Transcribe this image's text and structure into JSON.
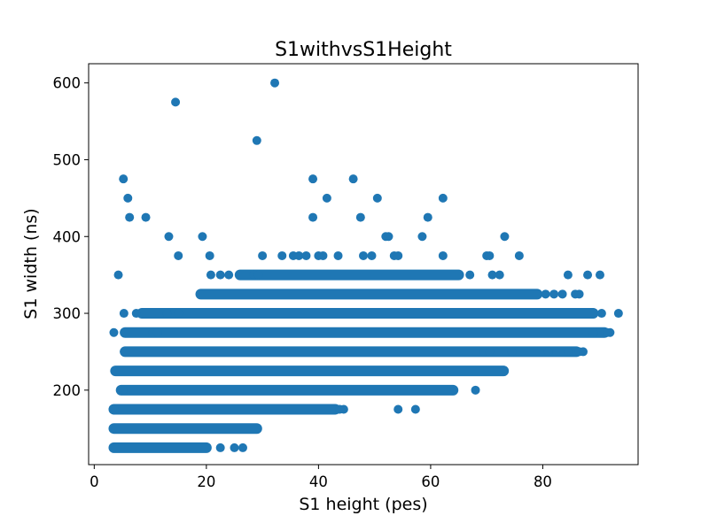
{
  "chart_data": {
    "type": "scatter",
    "title": "S1withvsS1Height",
    "xlabel": "S1 height (pes)",
    "ylabel": "S1 width (ns)",
    "xlim": [
      -1,
      97
    ],
    "ylim": [
      103,
      625
    ],
    "xticks": [
      0,
      20,
      40,
      60,
      80
    ],
    "yticks": [
      200,
      300,
      400,
      500,
      600
    ],
    "grid": false,
    "marker_color": "#1f77b4",
    "dense_bands": [
      {
        "y": 125,
        "x_start": 3.5,
        "x_end": 20
      },
      {
        "y": 150,
        "x_start": 3.5,
        "x_end": 29
      },
      {
        "y": 175,
        "x_start": 3.5,
        "x_end": 43
      },
      {
        "y": 200,
        "x_start": 4.8,
        "x_end": 64
      },
      {
        "y": 225,
        "x_start": 3.8,
        "x_end": 73
      },
      {
        "y": 250,
        "x_start": 5.5,
        "x_end": 86
      },
      {
        "y": 275,
        "x_start": 5.5,
        "x_end": 91
      },
      {
        "y": 300,
        "x_start": 8.5,
        "x_end": 89
      },
      {
        "y": 325,
        "x_start": 19,
        "x_end": 79
      },
      {
        "y": 350,
        "x_start": 26,
        "x_end": 65
      }
    ],
    "points": [
      {
        "x": 3.5,
        "y": 275
      },
      {
        "x": 4.3,
        "y": 350
      },
      {
        "x": 3.6,
        "y": 175
      },
      {
        "x": 5.3,
        "y": 300
      },
      {
        "x": 7.5,
        "y": 300
      },
      {
        "x": 5.1,
        "y": 200
      },
      {
        "x": 5.2,
        "y": 475
      },
      {
        "x": 6.0,
        "y": 450
      },
      {
        "x": 6.3,
        "y": 425
      },
      {
        "x": 9.2,
        "y": 425
      },
      {
        "x": 14.5,
        "y": 575
      },
      {
        "x": 13.3,
        "y": 400
      },
      {
        "x": 15.0,
        "y": 375
      },
      {
        "x": 19.3,
        "y": 400
      },
      {
        "x": 20.6,
        "y": 375
      },
      {
        "x": 13.0,
        "y": 300
      },
      {
        "x": 10.5,
        "y": 275
      },
      {
        "x": 11.3,
        "y": 275
      },
      {
        "x": 15.0,
        "y": 300
      },
      {
        "x": 22.5,
        "y": 125
      },
      {
        "x": 25.0,
        "y": 125
      },
      {
        "x": 26.5,
        "y": 125
      },
      {
        "x": 20.8,
        "y": 350
      },
      {
        "x": 22.5,
        "y": 350
      },
      {
        "x": 24.0,
        "y": 350
      },
      {
        "x": 28.5,
        "y": 350
      },
      {
        "x": 29.3,
        "y": 350
      },
      {
        "x": 29.0,
        "y": 525
      },
      {
        "x": 32.2,
        "y": 600
      },
      {
        "x": 30.0,
        "y": 375
      },
      {
        "x": 33.5,
        "y": 375
      },
      {
        "x": 35.5,
        "y": 375
      },
      {
        "x": 36.5,
        "y": 375
      },
      {
        "x": 37.8,
        "y": 375
      },
      {
        "x": 40.0,
        "y": 375
      },
      {
        "x": 40.8,
        "y": 375
      },
      {
        "x": 43.5,
        "y": 375
      },
      {
        "x": 48.0,
        "y": 375
      },
      {
        "x": 49.5,
        "y": 375
      },
      {
        "x": 53.5,
        "y": 375
      },
      {
        "x": 54.2,
        "y": 375
      },
      {
        "x": 62.2,
        "y": 375
      },
      {
        "x": 70.0,
        "y": 375
      },
      {
        "x": 70.5,
        "y": 375
      },
      {
        "x": 75.8,
        "y": 375
      },
      {
        "x": 39.0,
        "y": 475
      },
      {
        "x": 46.2,
        "y": 475
      },
      {
        "x": 39.0,
        "y": 425
      },
      {
        "x": 41.5,
        "y": 450
      },
      {
        "x": 47.5,
        "y": 425
      },
      {
        "x": 50.5,
        "y": 450
      },
      {
        "x": 52.0,
        "y": 400
      },
      {
        "x": 52.5,
        "y": 400
      },
      {
        "x": 59.5,
        "y": 425
      },
      {
        "x": 58.5,
        "y": 400
      },
      {
        "x": 62.2,
        "y": 450
      },
      {
        "x": 73.2,
        "y": 400
      },
      {
        "x": 67.0,
        "y": 350
      },
      {
        "x": 71.0,
        "y": 350
      },
      {
        "x": 72.3,
        "y": 350
      },
      {
        "x": 84.5,
        "y": 350
      },
      {
        "x": 88.0,
        "y": 350
      },
      {
        "x": 90.2,
        "y": 350
      },
      {
        "x": 80.5,
        "y": 325
      },
      {
        "x": 82.0,
        "y": 325
      },
      {
        "x": 83.5,
        "y": 325
      },
      {
        "x": 85.8,
        "y": 325
      },
      {
        "x": 86.5,
        "y": 325
      },
      {
        "x": 90.5,
        "y": 300
      },
      {
        "x": 93.5,
        "y": 300
      },
      {
        "x": 92.0,
        "y": 275
      },
      {
        "x": 89.0,
        "y": 275
      },
      {
        "x": 91.5,
        "y": 275
      },
      {
        "x": 86.5,
        "y": 250
      },
      {
        "x": 87.2,
        "y": 250
      },
      {
        "x": 84.5,
        "y": 250
      },
      {
        "x": 81.0,
        "y": 250
      },
      {
        "x": 69.5,
        "y": 250
      },
      {
        "x": 70.5,
        "y": 250
      },
      {
        "x": 74.5,
        "y": 250
      },
      {
        "x": 68.0,
        "y": 200
      },
      {
        "x": 54.2,
        "y": 175
      },
      {
        "x": 57.3,
        "y": 175
      },
      {
        "x": 44.5,
        "y": 175
      },
      {
        "x": 43.8,
        "y": 175
      }
    ]
  }
}
